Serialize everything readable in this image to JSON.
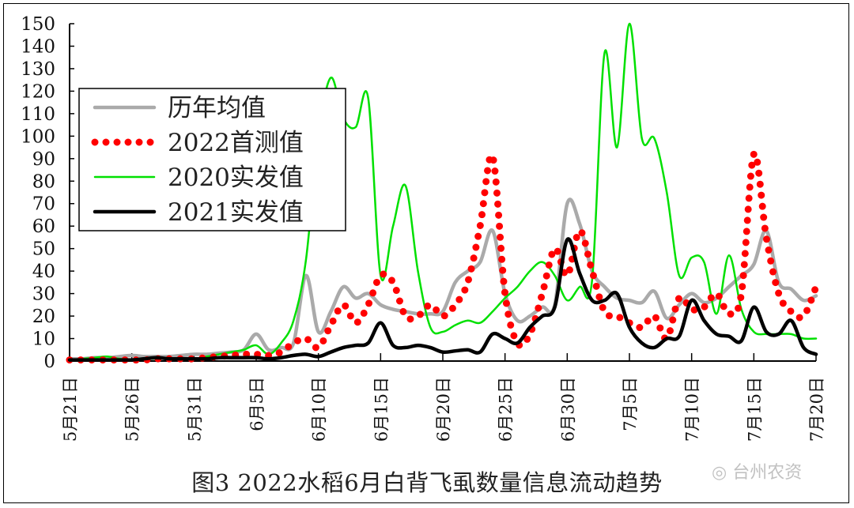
{
  "chart_data": {
    "type": "line",
    "title": "图3  2022水稻6月白背飞虱数量信息流动趋势",
    "xlabel": "",
    "ylabel": "",
    "ylim": [
      0,
      150
    ],
    "yticks": [
      0,
      10,
      20,
      30,
      40,
      50,
      60,
      70,
      80,
      90,
      100,
      110,
      120,
      130,
      140,
      150
    ],
    "x_start": "5月21日",
    "x_end": "7月20日",
    "xtick_labels": [
      "5月21日",
      "5月26日",
      "5月31日",
      "6月5日",
      "6月10日",
      "6月15日",
      "6月20日",
      "6月25日",
      "6月30日",
      "7月5日",
      "7月10日",
      "7月15日",
      "7月20日"
    ],
    "grid": false,
    "legend_position": "top-left",
    "series": [
      {
        "name": "历年均值",
        "color": "#aaaaaa",
        "style": "thick-solid",
        "values": [
          1,
          1,
          1.5,
          1.5,
          2,
          2.5,
          2,
          2,
          2,
          2.5,
          3,
          3,
          3.5,
          4,
          5,
          12,
          5,
          6,
          8,
          38,
          13,
          22,
          33,
          28,
          30,
          25,
          23,
          22,
          21,
          21,
          22,
          35,
          40,
          44,
          58,
          30,
          18,
          20,
          24,
          25,
          70,
          61,
          40,
          33,
          28,
          27,
          26,
          31,
          19,
          25,
          30,
          26,
          28,
          33,
          38,
          43,
          58,
          35,
          32,
          27,
          29
        ]
      },
      {
        "name": "2022首测值",
        "color": "#ff0000",
        "style": "dotted",
        "values": [
          0.5,
          0.5,
          0.5,
          0.5,
          0.5,
          0.5,
          0.5,
          1,
          1,
          1,
          1,
          1.5,
          2,
          2.5,
          3,
          3,
          2.5,
          4,
          8,
          10,
          6,
          16,
          25,
          17,
          25,
          38,
          35,
          20,
          20,
          25,
          20,
          25,
          35,
          60,
          91,
          30,
          8,
          12,
          30,
          50,
          38,
          58,
          40,
          22,
          20,
          17,
          15,
          20,
          10,
          28,
          23,
          24,
          30,
          21,
          30,
          92,
          55,
          30,
          22,
          20,
          33
        ]
      },
      {
        "name": "2020实发值",
        "color": "#00e000",
        "style": "solid",
        "values": [
          0.5,
          1,
          1.5,
          2,
          1,
          0.5,
          1,
          1,
          1,
          1,
          1,
          2,
          3,
          4,
          5,
          7,
          3,
          8,
          18,
          45,
          100,
          126,
          108,
          104,
          117,
          38,
          60,
          78,
          40,
          15,
          13,
          16,
          18,
          17,
          22,
          28,
          33,
          40,
          44,
          38,
          27,
          33,
          36,
          137,
          95,
          150,
          99,
          99,
          75,
          38,
          46,
          44,
          21,
          47,
          23,
          13,
          12,
          12,
          12,
          10,
          10
        ]
      },
      {
        "name": "2021实发值",
        "color": "#000000",
        "style": "thick-solid",
        "values": [
          0.5,
          0.5,
          0.5,
          0.5,
          0.5,
          0.5,
          1,
          1.5,
          1,
          1,
          1,
          1,
          1.5,
          1.5,
          1.5,
          1.5,
          1,
          1.5,
          2.5,
          3,
          2,
          4,
          6,
          7,
          8,
          17,
          7,
          6,
          7,
          6,
          4,
          4.5,
          5,
          4,
          12,
          10,
          8,
          15,
          20,
          24,
          54,
          39,
          27,
          27,
          30,
          15,
          8,
          6,
          10,
          11,
          27,
          18,
          12,
          11,
          9,
          24,
          13,
          12,
          18,
          6,
          3
        ]
      }
    ]
  },
  "watermark": "台州农资"
}
